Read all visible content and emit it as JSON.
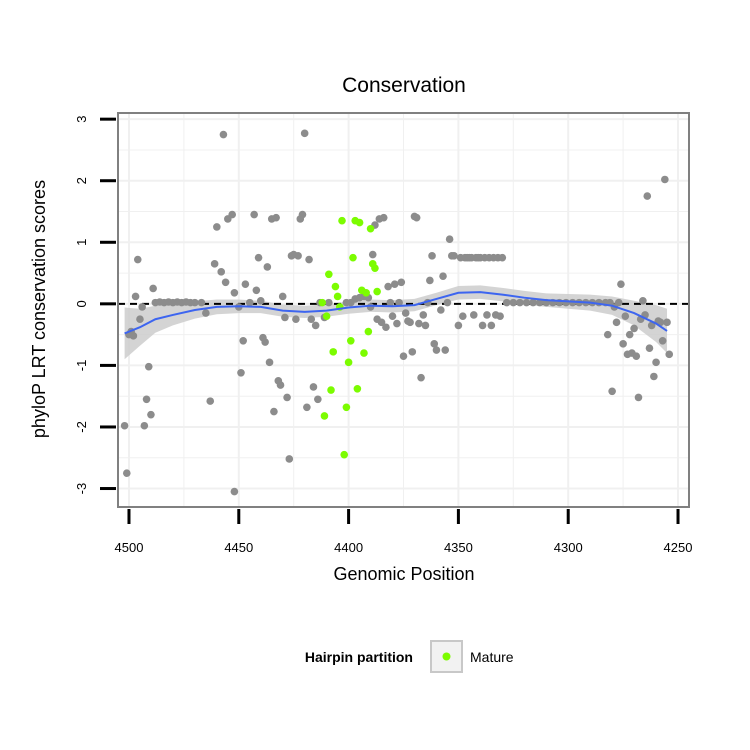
{
  "chart_data": {
    "type": "scatter",
    "title": "Conservation",
    "xlabel": "Genomic Position",
    "ylabel": "phyloP LRT conservation scores",
    "x_reversed": true,
    "xlim": [
      4505,
      4245
    ],
    "ylim": [
      -3.3,
      3.1
    ],
    "x_ticks": [
      4500,
      4450,
      4400,
      4350,
      4300,
      4250
    ],
    "x_tick_labels": [
      "4500",
      "4450",
      "4400",
      "4350",
      "4300",
      "4250"
    ],
    "y_ticks": [
      -3,
      -2,
      -1,
      0,
      1,
      2,
      3
    ],
    "y_tick_labels": [
      "-3",
      "-2",
      "-1",
      "0",
      "1",
      "2",
      "3"
    ],
    "reference_line": {
      "y": 0,
      "style": "dashed",
      "color": "#000000"
    },
    "grid": true,
    "legend": {
      "title": "Hairpin partition",
      "placement": "bottom",
      "entries": [
        "Mature"
      ]
    },
    "colors": {
      "background": "#ffffff",
      "grid": "#f0f0f0",
      "border": "#808080",
      "other_points": "#8c8c8c",
      "mature_points": "#7cfc00",
      "smooth_line": "#3d65f0",
      "smooth_band": "#cccccc"
    },
    "series": [
      {
        "name": "",
        "color": "#8c8c8c",
        "points": [
          [
            4501,
            -2.75
          ],
          [
            4502,
            -1.98
          ],
          [
            4500,
            -0.5
          ],
          [
            4499,
            -0.45
          ],
          [
            4498,
            -0.52
          ],
          [
            4497,
            0.12
          ],
          [
            4496,
            0.72
          ],
          [
            4495,
            -0.25
          ],
          [
            4494,
            -0.05
          ],
          [
            4493,
            -1.98
          ],
          [
            4492,
            -1.55
          ],
          [
            4491,
            -1.02
          ],
          [
            4490,
            -1.8
          ],
          [
            4489,
            0.25
          ],
          [
            4488,
            0.02
          ],
          [
            4486,
            0.03
          ],
          [
            4484,
            0.02
          ],
          [
            4482,
            0.03
          ],
          [
            4480,
            0.02
          ],
          [
            4478,
            0.03
          ],
          [
            4476,
            0.02
          ],
          [
            4474,
            0.03
          ],
          [
            4472,
            0.02
          ],
          [
            4470,
            0.02
          ],
          [
            4467,
            0.02
          ],
          [
            4465,
            -0.15
          ],
          [
            4463,
            -1.58
          ],
          [
            4461,
            0.65
          ],
          [
            4460,
            1.25
          ],
          [
            4458,
            0.52
          ],
          [
            4457,
            2.75
          ],
          [
            4456,
            0.35
          ],
          [
            4455,
            1.38
          ],
          [
            4453,
            1.45
          ],
          [
            4452,
            0.18
          ],
          [
            4450,
            -0.05
          ],
          [
            4449,
            -1.12
          ],
          [
            4448,
            -0.6
          ],
          [
            4447,
            0.32
          ],
          [
            4445,
            0.02
          ],
          [
            4443,
            1.45
          ],
          [
            4442,
            0.22
          ],
          [
            4441,
            0.75
          ],
          [
            4440,
            0.05
          ],
          [
            4439,
            -0.55
          ],
          [
            4438,
            -0.62
          ],
          [
            4437,
            0.6
          ],
          [
            4436,
            -0.95
          ],
          [
            4435,
            1.38
          ],
          [
            4434,
            -1.75
          ],
          [
            4433,
            1.4
          ],
          [
            4432,
            -1.25
          ],
          [
            4431,
            -1.32
          ],
          [
            4430,
            0.12
          ],
          [
            4429,
            -0.22
          ],
          [
            4428,
            -1.52
          ],
          [
            4427,
            -2.52
          ],
          [
            4426,
            0.78
          ],
          [
            4425,
            0.8
          ],
          [
            4424,
            -0.25
          ],
          [
            4423,
            0.78
          ],
          [
            4422,
            1.38
          ],
          [
            4421,
            1.45
          ],
          [
            4420,
            2.77
          ],
          [
            4419,
            -1.68
          ],
          [
            4418,
            0.72
          ],
          [
            4417,
            -0.25
          ],
          [
            4416,
            -1.35
          ],
          [
            4415,
            -0.35
          ],
          [
            4414,
            -1.55
          ],
          [
            4413,
            0.02
          ],
          [
            4411,
            -0.22
          ],
          [
            4409,
            0.02
          ],
          [
            4401,
            0.02
          ],
          [
            4399,
            0.02
          ],
          [
            4397,
            0.08
          ],
          [
            4395,
            0.1
          ],
          [
            4393,
            0.12
          ],
          [
            4391,
            0.1
          ],
          [
            4390,
            -0.05
          ],
          [
            4389,
            0.8
          ],
          [
            4388,
            1.28
          ],
          [
            4387,
            -0.25
          ],
          [
            4386,
            1.38
          ],
          [
            4385,
            -0.3
          ],
          [
            4384,
            1.4
          ],
          [
            4383,
            -0.38
          ],
          [
            4382,
            0.28
          ],
          [
            4381,
            0.02
          ],
          [
            4380,
            -0.2
          ],
          [
            4379,
            0.32
          ],
          [
            4378,
            -0.32
          ],
          [
            4377,
            0.02
          ],
          [
            4376,
            0.35
          ],
          [
            4375,
            -0.85
          ],
          [
            4374,
            -0.15
          ],
          [
            4373,
            -0.28
          ],
          [
            4372,
            -0.3
          ],
          [
            4371,
            -0.78
          ],
          [
            4370,
            1.42
          ],
          [
            4369,
            1.4
          ],
          [
            4368,
            -0.32
          ],
          [
            4367,
            -1.2
          ],
          [
            4366,
            -0.18
          ],
          [
            4365,
            -0.35
          ],
          [
            4364,
            0.02
          ],
          [
            4363,
            0.38
          ],
          [
            4362,
            0.78
          ],
          [
            4361,
            -0.65
          ],
          [
            4360,
            -0.75
          ],
          [
            4358,
            -0.1
          ],
          [
            4357,
            0.45
          ],
          [
            4356,
            -0.75
          ],
          [
            4355,
            0.02
          ],
          [
            4354,
            1.05
          ],
          [
            4353,
            0.78
          ],
          [
            4352,
            0.78
          ],
          [
            4350,
            -0.35
          ],
          [
            4349,
            0.75
          ],
          [
            4348,
            -0.2
          ],
          [
            4347,
            0.75
          ],
          [
            4346,
            0.75
          ],
          [
            4345,
            0.75
          ],
          [
            4344,
            0.75
          ],
          [
            4343,
            -0.18
          ],
          [
            4342,
            0.75
          ],
          [
            4341,
            0.75
          ],
          [
            4340,
            0.75
          ],
          [
            4339,
            -0.35
          ],
          [
            4338,
            0.75
          ],
          [
            4337,
            -0.18
          ],
          [
            4336,
            0.75
          ],
          [
            4335,
            -0.35
          ],
          [
            4334,
            0.75
          ],
          [
            4333,
            -0.18
          ],
          [
            4332,
            0.75
          ],
          [
            4331,
            -0.2
          ],
          [
            4330,
            0.75
          ],
          [
            4328,
            0.02
          ],
          [
            4325,
            0.02
          ],
          [
            4322,
            0.02
          ],
          [
            4319,
            0.02
          ],
          [
            4316,
            0.02
          ],
          [
            4313,
            0.02
          ],
          [
            4310,
            0.02
          ],
          [
            4307,
            0.02
          ],
          [
            4304,
            0.02
          ],
          [
            4301,
            0.02
          ],
          [
            4298,
            0.02
          ],
          [
            4295,
            0.02
          ],
          [
            4292,
            0.02
          ],
          [
            4289,
            0.02
          ],
          [
            4286,
            0.02
          ],
          [
            4283,
            0.02
          ],
          [
            4282,
            -0.5
          ],
          [
            4281,
            0.02
          ],
          [
            4280,
            -1.42
          ],
          [
            4279,
            -0.05
          ],
          [
            4278,
            -0.3
          ],
          [
            4277,
            0.02
          ],
          [
            4276,
            0.32
          ],
          [
            4275,
            -0.65
          ],
          [
            4274,
            -0.2
          ],
          [
            4273,
            -0.82
          ],
          [
            4272,
            -0.5
          ],
          [
            4271,
            -0.8
          ],
          [
            4270,
            -0.4
          ],
          [
            4269,
            -0.85
          ],
          [
            4268,
            -1.52
          ],
          [
            4267,
            -0.25
          ],
          [
            4266,
            0.05
          ],
          [
            4265,
            -0.18
          ],
          [
            4264,
            1.75
          ],
          [
            4263,
            -0.72
          ],
          [
            4262,
            -0.35
          ],
          [
            4261,
            -1.18
          ],
          [
            4260,
            -0.95
          ],
          [
            4259,
            -0.28
          ],
          [
            4258,
            -0.3
          ],
          [
            4257,
            -0.6
          ],
          [
            4256,
            2.02
          ],
          [
            4255,
            -0.3
          ],
          [
            4254,
            -0.82
          ],
          [
            4452,
            -3.05
          ]
        ]
      },
      {
        "name": "Mature",
        "color": "#7cfc00",
        "points": [
          [
            4412,
            0.02
          ],
          [
            4411,
            -1.82
          ],
          [
            4410,
            -0.2
          ],
          [
            4409,
            0.48
          ],
          [
            4408,
            -1.4
          ],
          [
            4407,
            -0.78
          ],
          [
            4406,
            0.28
          ],
          [
            4405,
            0.12
          ],
          [
            4404,
            -0.05
          ],
          [
            4403,
            1.35
          ],
          [
            4402,
            -2.45
          ],
          [
            4401,
            -1.68
          ],
          [
            4400,
            -0.95
          ],
          [
            4399,
            -0.6
          ],
          [
            4398,
            0.75
          ],
          [
            4397,
            1.35
          ],
          [
            4396,
            -1.38
          ],
          [
            4395,
            1.32
          ],
          [
            4394,
            0.22
          ],
          [
            4393,
            -0.8
          ],
          [
            4392,
            0.18
          ],
          [
            4391,
            -0.45
          ],
          [
            4390,
            1.22
          ],
          [
            4389,
            0.65
          ],
          [
            4388,
            0.58
          ],
          [
            4387,
            0.2
          ]
        ]
      }
    ],
    "smooth": {
      "x": [
        4502,
        4495,
        4488,
        4480,
        4470,
        4460,
        4450,
        4440,
        4430,
        4420,
        4410,
        4400,
        4390,
        4380,
        4370,
        4360,
        4350,
        4340,
        4330,
        4320,
        4310,
        4300,
        4290,
        4280,
        4270,
        4260,
        4255
      ],
      "y": [
        -0.48,
        -0.38,
        -0.25,
        -0.18,
        -0.1,
        -0.05,
        -0.04,
        -0.05,
        -0.11,
        -0.13,
        -0.11,
        -0.06,
        -0.03,
        -0.04,
        -0.02,
        0.08,
        0.18,
        0.19,
        0.15,
        0.1,
        0.06,
        0.04,
        0.02,
        -0.03,
        -0.15,
        -0.32,
        -0.44
      ],
      "se": [
        0.42,
        0.3,
        0.22,
        0.17,
        0.14,
        0.12,
        0.11,
        0.1,
        0.1,
        0.1,
        0.1,
        0.1,
        0.1,
        0.1,
        0.1,
        0.1,
        0.11,
        0.11,
        0.11,
        0.11,
        0.11,
        0.12,
        0.13,
        0.15,
        0.2,
        0.3,
        0.36
      ]
    }
  }
}
